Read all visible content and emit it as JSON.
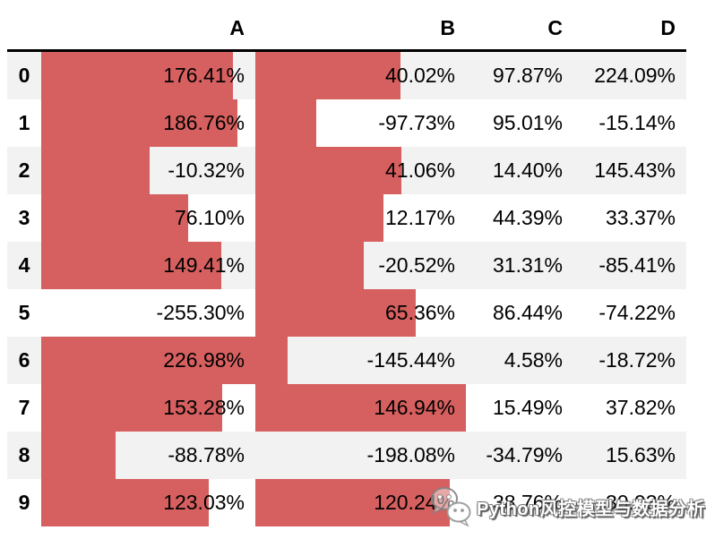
{
  "table": {
    "columns": [
      "A",
      "B",
      "C",
      "D"
    ],
    "bar_columns": [
      "A",
      "B"
    ],
    "bar_color": "#d65f5f",
    "stripe_color": "#f2f2f2",
    "rows": [
      {
        "index": "0",
        "values": [
          "176.41%",
          "40.02%",
          "97.87%",
          "224.09%"
        ]
      },
      {
        "index": "1",
        "values": [
          "186.76%",
          "-97.73%",
          "95.01%",
          "-15.14%"
        ]
      },
      {
        "index": "2",
        "values": [
          "-10.32%",
          "41.06%",
          "14.40%",
          "145.43%"
        ]
      },
      {
        "index": "3",
        "values": [
          "76.10%",
          "12.17%",
          "44.39%",
          "33.37%"
        ]
      },
      {
        "index": "4",
        "values": [
          "149.41%",
          "-20.52%",
          "31.31%",
          "-85.41%"
        ]
      },
      {
        "index": "5",
        "values": [
          "-255.30%",
          "65.36%",
          "86.44%",
          "-74.22%"
        ]
      },
      {
        "index": "6",
        "values": [
          "226.98%",
          "-145.44%",
          "4.58%",
          "-18.72%"
        ]
      },
      {
        "index": "7",
        "values": [
          "153.28%",
          "146.94%",
          "15.49%",
          "37.82%"
        ]
      },
      {
        "index": "8",
        "values": [
          "-88.78%",
          "-198.08%",
          "-34.79%",
          "15.63%"
        ]
      },
      {
        "index": "9",
        "values": [
          "123.03%",
          "120.24%",
          "38.76%",
          "30.93%"
        ]
      }
    ]
  },
  "chart_data": {
    "type": "table",
    "title": "",
    "columns": [
      "A",
      "B",
      "C",
      "D"
    ],
    "index": [
      0,
      1,
      2,
      3,
      4,
      5,
      6,
      7,
      8,
      9
    ],
    "value_format": "percent",
    "series": [
      {
        "name": "A",
        "style": "databar",
        "bar_color": "#d65f5f",
        "values": [
          176.41,
          186.76,
          -10.32,
          76.1,
          149.41,
          -255.3,
          226.98,
          153.28,
          -88.78,
          123.03
        ]
      },
      {
        "name": "B",
        "style": "databar",
        "bar_color": "#d65f5f",
        "values": [
          40.02,
          -97.73,
          41.06,
          12.17,
          -20.52,
          65.36,
          -145.44,
          146.94,
          -198.08,
          120.24
        ]
      },
      {
        "name": "C",
        "style": "plain",
        "values": [
          97.87,
          95.01,
          14.4,
          44.39,
          31.31,
          86.44,
          4.58,
          15.49,
          -34.79,
          38.76
        ]
      },
      {
        "name": "D",
        "style": "plain",
        "values": [
          224.09,
          -15.14,
          145.43,
          33.37,
          -85.41,
          -74.22,
          -18.72,
          37.82,
          15.63,
          30.93
        ]
      }
    ],
    "bar_scaling": "per-column min-max, left-aligned"
  },
  "watermark": {
    "icon": "wechat-icon",
    "text": "Python风控模型与数据分析"
  }
}
